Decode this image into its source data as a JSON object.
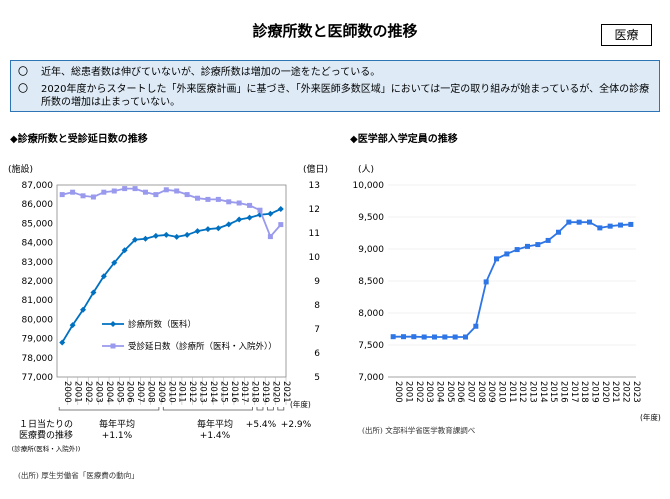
{
  "header": {
    "title": "診療所数と医師数の推移",
    "badge": "医療"
  },
  "summary": {
    "items": [
      {
        "mark": "〇",
        "text": "近年、総患者数は伸びていないが、診療所数は増加の一途をたどっている。"
      },
      {
        "mark": "〇",
        "text": "2020年度からスタートした「外来医療計画」に基づき、「外来医師多数区域」においては一定の取り組みが始まっているが、全体の診療所数の増加は止まっていない。"
      }
    ]
  },
  "left_section_title": "◆診療所数と受診延日数の推移",
  "right_section_title": "◆医学部入学定員の推移",
  "annotations": {
    "per_day_cost": "１日当たりの\n医療費の推移",
    "per_day_cost_sub": "(診療所(医科・入院外))",
    "avg1": "毎年平均\n+1.1%",
    "avg2": "毎年平均\n+1.4%",
    "g2020": "+5.4%",
    "g2021": "+2.9%"
  },
  "sources": {
    "left": "(出所) 厚生労働省「医療費の動向」",
    "right": "(出所) 文部科学省医学教育課調べ"
  },
  "colors": {
    "clinics": "#0070c0",
    "visits": "#9999ee",
    "enrollment": "#2e75e6",
    "summary_bg": "#deebf7",
    "summary_border": "#2e75b6"
  },
  "chart_data": [
    {
      "type": "line",
      "ylabel_left": "(施設)",
      "ylabel_right": "(億日)",
      "xlabel": "(年度)",
      "x": [
        "2000",
        "2001",
        "2002",
        "2003",
        "2004",
        "2005",
        "2006",
        "2007",
        "2008",
        "2009",
        "2010",
        "2011",
        "2012",
        "2013",
        "2014",
        "2015",
        "2016",
        "2017",
        "2018",
        "2019",
        "2020",
        "2021"
      ],
      "ylim_left": [
        77000,
        87000
      ],
      "ylim_right": [
        5,
        13
      ],
      "yticks_left": [
        "77,000",
        "78,000",
        "79,000",
        "80,000",
        "81,000",
        "82,000",
        "83,000",
        "84,000",
        "85,000",
        "86,000",
        "87,000"
      ],
      "yticks_right": [
        "5",
        "6",
        "7",
        "8",
        "9",
        "10",
        "11",
        "12",
        "13"
      ],
      "series": [
        {
          "name": "診療所数（医科）",
          "axis": "left",
          "marker": "diamond",
          "values": [
            78800,
            79700,
            80500,
            81400,
            82250,
            82950,
            83600,
            84150,
            84200,
            84350,
            84400,
            84300,
            84400,
            84600,
            84700,
            84750,
            84950,
            85200,
            85300,
            85450,
            85500,
            85750
          ]
        },
        {
          "name": "受診延日数（診療所（医科・入院外））",
          "axis": "right",
          "marker": "square",
          "values": [
            12.6,
            12.7,
            12.55,
            12.5,
            12.7,
            12.75,
            12.85,
            12.85,
            12.7,
            12.6,
            12.8,
            12.75,
            12.6,
            12.45,
            12.4,
            12.4,
            12.3,
            12.25,
            12.15,
            11.95,
            10.85,
            11.35
          ]
        }
      ]
    },
    {
      "type": "line",
      "ylabel": "(人)",
      "xlabel": "(年度)",
      "x": [
        "2000",
        "2001",
        "2002",
        "2003",
        "2004",
        "2005",
        "2006",
        "2007",
        "2008",
        "2009",
        "2010",
        "2011",
        "2012",
        "2013",
        "2014",
        "2015",
        "2016",
        "2017",
        "2018",
        "2019",
        "2020",
        "2021",
        "2022",
        "2023"
      ],
      "ylim": [
        7000,
        10000
      ],
      "yticks": [
        "7,000",
        "7,500",
        "8,000",
        "8,500",
        "9,000",
        "9,500",
        "10,000"
      ],
      "series": [
        {
          "name": "医学部入学定員",
          "marker": "square",
          "values": [
            7630,
            7630,
            7630,
            7625,
            7625,
            7625,
            7625,
            7625,
            7793,
            8486,
            8846,
            8923,
            8991,
            9041,
            9069,
            9134,
            9262,
            9420,
            9419,
            9420,
            9330,
            9357,
            9374,
            9384
          ]
        }
      ]
    }
  ]
}
